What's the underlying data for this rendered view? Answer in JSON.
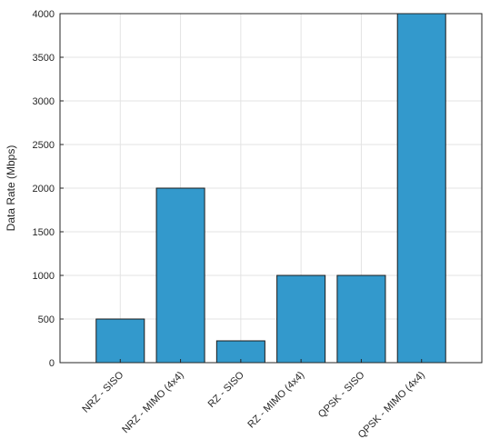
{
  "chart_data": {
    "type": "bar",
    "categories": [
      "NRZ - SISO",
      "NRZ - MIMO (4x4)",
      "RZ - SISO",
      "RZ - MIMO (4x4)",
      "QPSK - SISO",
      "QPSK - MIMO (4x4)"
    ],
    "values": [
      500,
      2000,
      250,
      1000,
      1000,
      4000
    ],
    "title": "",
    "xlabel": "",
    "ylabel": "Data Rate (Mbps)",
    "ylim": [
      0,
      4000
    ],
    "yticks": [
      0,
      500,
      1000,
      1500,
      2000,
      2500,
      3000,
      3500,
      4000
    ],
    "grid": true,
    "bar_color": "#3399cc",
    "edge_color": "#1a1a1a"
  }
}
